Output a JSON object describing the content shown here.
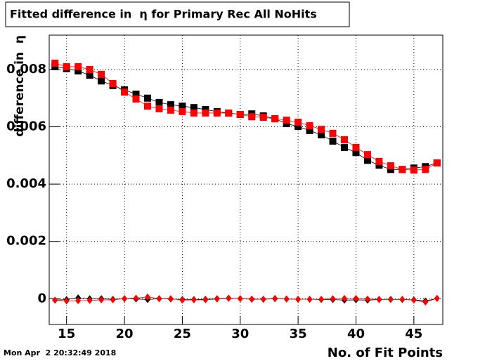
{
  "chart_data": {
    "type": "scatter",
    "title": "Fitted difference in  η for Primary Rec All NoHits",
    "x_label": "No. of Fit Points",
    "y_label": "difference in  η",
    "annotations": [
      "Mon Apr  2 20:32:49 2018"
    ],
    "x": [
      14,
      15,
      16,
      17,
      18,
      19,
      20,
      21,
      22,
      23,
      24,
      25,
      26,
      27,
      28,
      29,
      30,
      31,
      32,
      33,
      34,
      35,
      36,
      37,
      38,
      39,
      40,
      41,
      42,
      43,
      44,
      45,
      46,
      47
    ],
    "series": [
      {
        "color": "#000000",
        "marker": "square",
        "values": [
          0.0081,
          0.00803,
          0.00795,
          0.0078,
          0.0076,
          0.00744,
          0.00729,
          0.00714,
          0.007,
          0.00685,
          0.00677,
          0.00672,
          0.00667,
          0.0066,
          0.00653,
          0.00648,
          0.00643,
          0.00645,
          0.00638,
          0.00628,
          0.00611,
          0.00601,
          0.00587,
          0.00572,
          0.0055,
          0.00528,
          0.0051,
          0.00483,
          0.00466,
          0.00451,
          0.00451,
          0.00456,
          0.00461,
          0.00474
        ]
      },
      {
        "color": "#ff0000",
        "marker": "square",
        "values": [
          0.00822,
          0.0081,
          0.0081,
          0.008,
          0.00783,
          0.00751,
          0.00721,
          0.00697,
          0.00672,
          0.00663,
          0.00658,
          0.00653,
          0.00648,
          0.00648,
          0.00648,
          0.00648,
          0.00643,
          0.00635,
          0.00633,
          0.00628,
          0.00623,
          0.00616,
          0.00604,
          0.00591,
          0.00577,
          0.00555,
          0.00528,
          0.00503,
          0.00479,
          0.00464,
          0.00451,
          0.00449,
          0.00451,
          0.00474
        ]
      },
      {
        "color": "#000000",
        "marker": "diamond",
        "values": [
          -5e-05,
          -3e-05,
          3e-05,
          0,
          0,
          -2e-05,
          0,
          -1e-05,
          -3e-05,
          0,
          -1e-05,
          -3e-05,
          -3e-05,
          -2e-05,
          0,
          2e-05,
          0,
          -2e-05,
          -2e-05,
          0,
          -1e-05,
          -2e-05,
          -2e-05,
          -3e-05,
          -3e-05,
          -5e-05,
          -4e-05,
          -5e-05,
          -3e-05,
          -2e-05,
          -3e-05,
          -4e-05,
          -8e-05,
          1e-05
        ]
      },
      {
        "color": "#ff0000",
        "marker": "diamond",
        "values": [
          -5e-05,
          -8e-05,
          -7e-05,
          -6e-05,
          -4e-05,
          -4e-05,
          0,
          2e-05,
          6e-05,
          0,
          0,
          -5e-05,
          -4e-05,
          -4e-05,
          -1e-05,
          1e-05,
          0,
          -1e-05,
          -2e-05,
          1e-05,
          -1e-05,
          -2e-05,
          -2e-05,
          -2e-05,
          0,
          1e-05,
          1e-05,
          -1e-05,
          -2e-05,
          -3e-05,
          -2e-05,
          -5e-05,
          -0.00012,
          1e-05
        ]
      }
    ],
    "xlim": [
      13.5,
      47.5
    ],
    "xticks": [
      15,
      20,
      25,
      30,
      35,
      40,
      45
    ],
    "ylim": [
      -0.0009,
      0.0092
    ],
    "yticks": [
      0,
      0.002,
      0.004,
      0.006,
      0.008
    ],
    "grid": true
  }
}
